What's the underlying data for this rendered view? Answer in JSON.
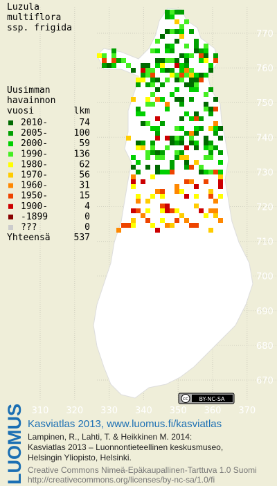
{
  "title": [
    "Luzula",
    "multiflora",
    "ssp. frigida"
  ],
  "legend": {
    "heading": [
      "Uusimman",
      "havainnon",
      "vuosi"
    ],
    "count_heading": "lkm",
    "rows": [
      {
        "label": "2010-",
        "count": 74,
        "color": "#006a00"
      },
      {
        "label": "2005-",
        "count": 100,
        "color": "#00a000"
      },
      {
        "label": "2000-",
        "count": 59,
        "color": "#00d000"
      },
      {
        "label": "1990-",
        "count": 136,
        "color": "#44ee22"
      },
      {
        "label": "1980-",
        "count": 62,
        "color": "#ffff00"
      },
      {
        "label": "1970-",
        "count": 56,
        "color": "#ffcc00"
      },
      {
        "label": "1960-",
        "count": 31,
        "color": "#ff8800"
      },
      {
        "label": "1950-",
        "count": 15,
        "color": "#ee4400"
      },
      {
        "label": "1900-",
        "count": 4,
        "color": "#cc0000"
      },
      {
        "label": "-1899",
        "count": 0,
        "color": "#880000"
      },
      {
        "label": "???",
        "count": 0,
        "color": "#cccccc"
      }
    ],
    "total_label": "Yhteensä",
    "total": 537
  },
  "grid": {
    "y_labels": [
      770,
      760,
      750,
      740,
      730,
      720,
      710,
      700,
      690,
      680,
      670
    ],
    "x_labels": [
      310,
      320,
      330,
      340,
      350,
      360,
      370
    ]
  },
  "badge": {
    "cc": "cc",
    "license": "BY-NC-SA"
  },
  "logo": "LUOMUS",
  "footer": {
    "link": "Kasviatlas 2013, www.luomus.fi/kasviatlas",
    "citation": [
      "Lampinen, R., Lahti, T. & Heikkinen M. 2014:",
      "Kasviatlas 2013 – Luonnontieteellinen keskusmuseo,",
      "Helsingin Yliopisto, Helsinki."
    ],
    "license": [
      "Creative Commons Nimeä-Epäkaupallinen-Tarttuva 1.0 Suomi",
      "http://creativecommons.org/licenses/by-nc-sa/1.0/fi"
    ]
  }
}
